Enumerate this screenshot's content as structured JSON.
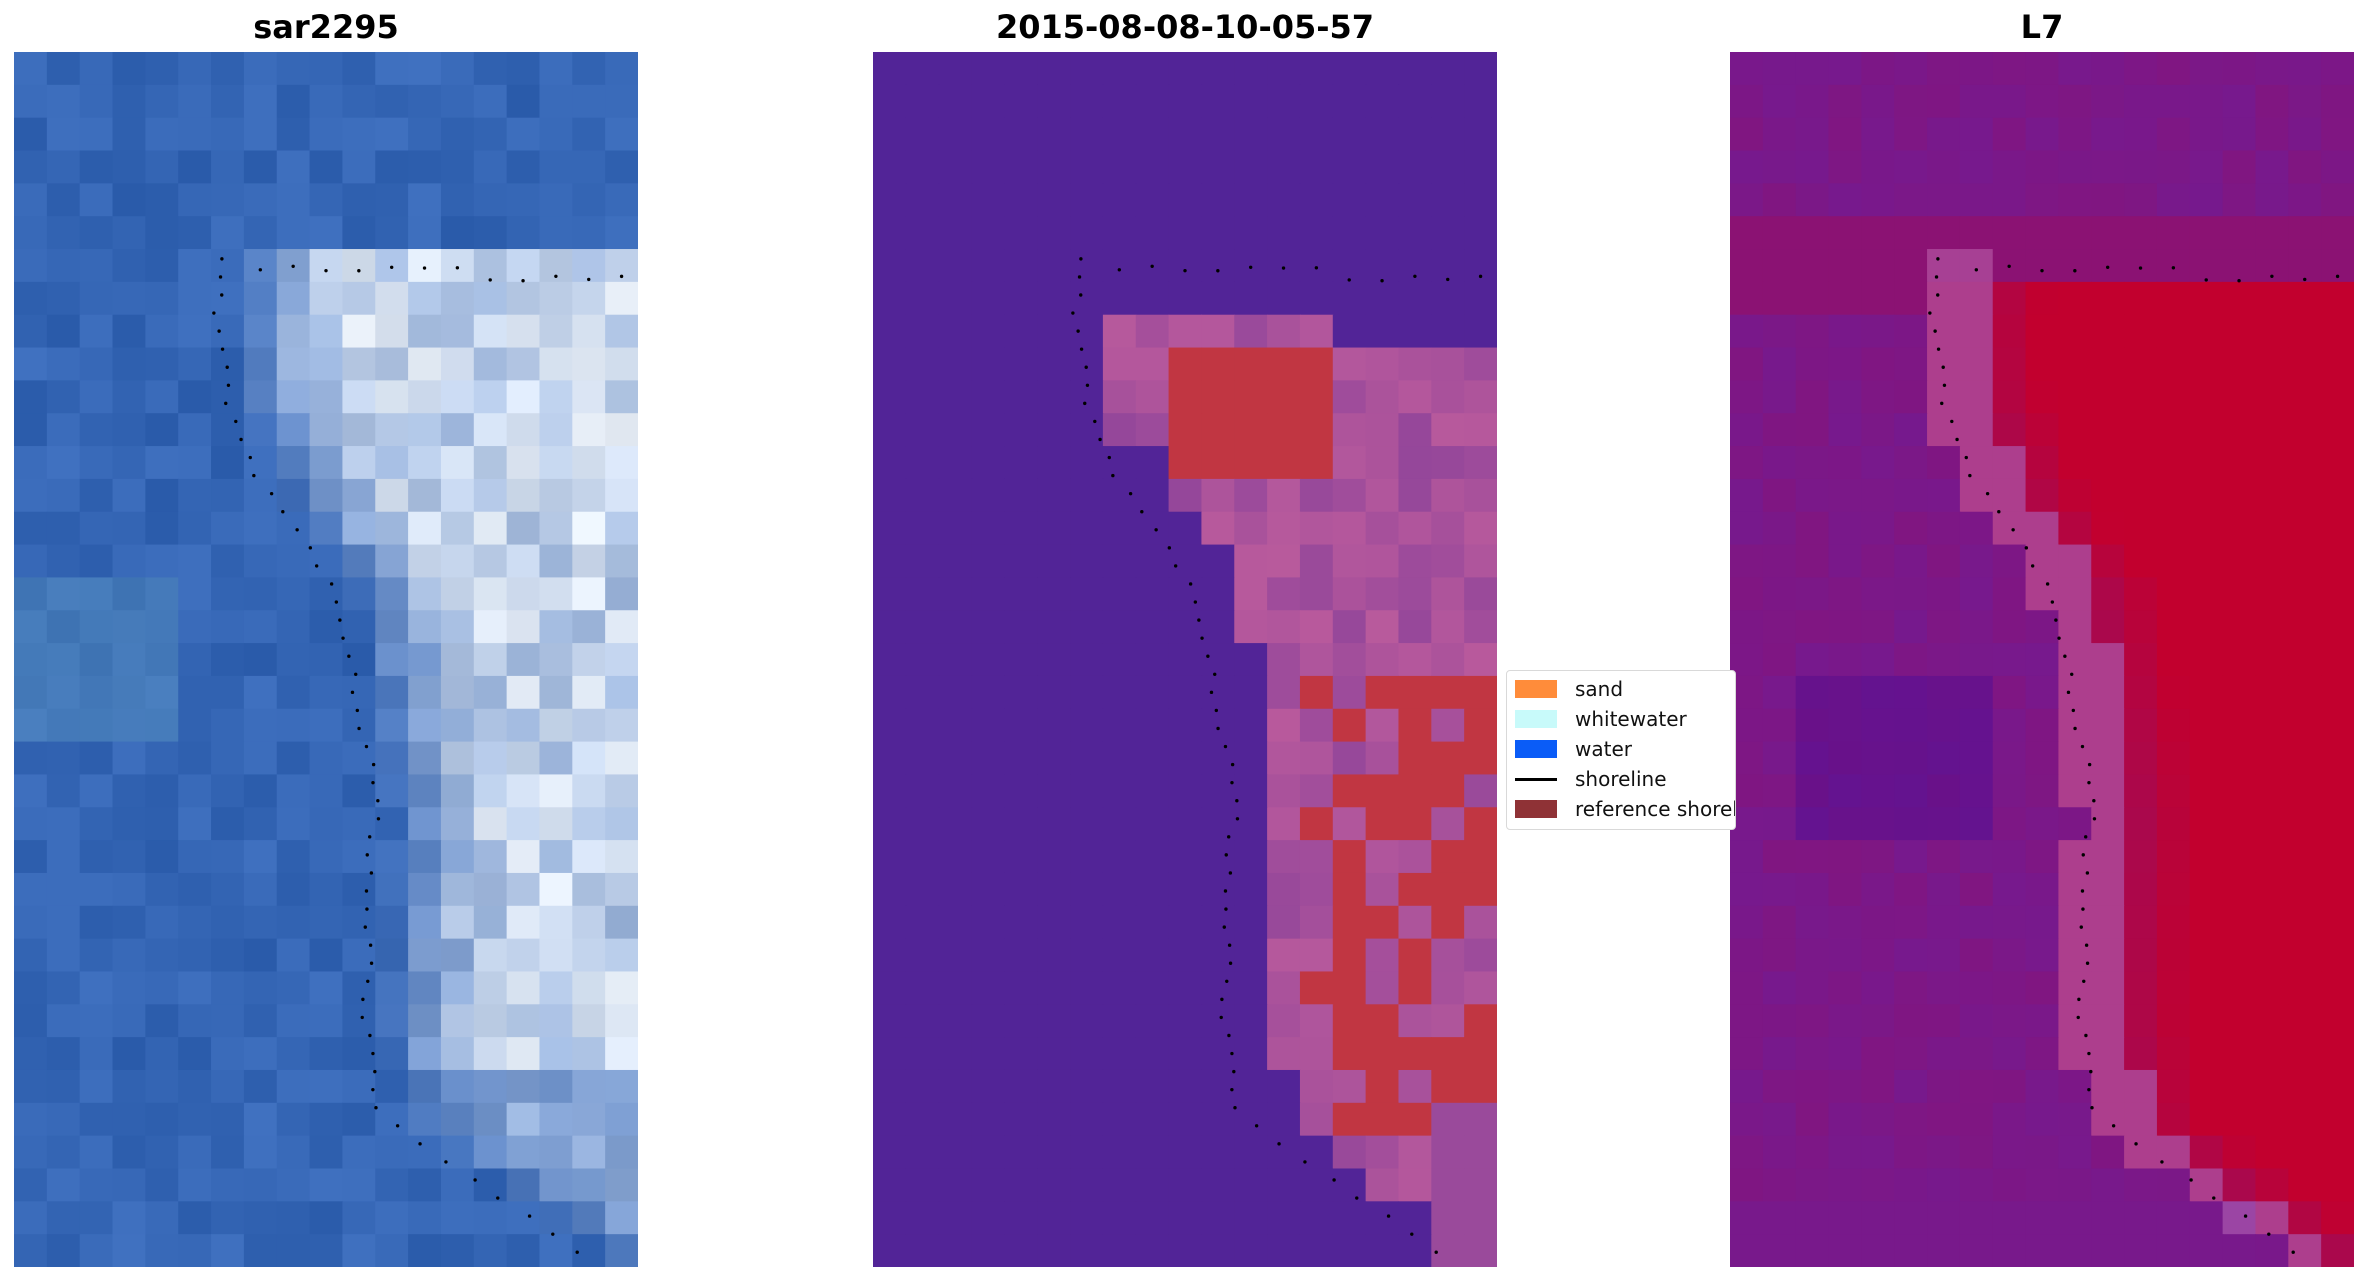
{
  "panels": [
    {
      "title": "sar2295"
    },
    {
      "title": "2015-08-08-10-05-57"
    },
    {
      "title": "L7"
    }
  ],
  "legend": {
    "items": [
      {
        "label": "sand",
        "color": "#ff8c3a"
      },
      {
        "label": "whitewater",
        "color": "#c8fafa"
      },
      {
        "label": "water",
        "color": "#0a5cf7"
      },
      {
        "label": "shoreline",
        "color": "#000000"
      },
      {
        "label": "reference shoreline",
        "color": "#8f3236"
      }
    ]
  },
  "colors": {
    "rgb_water": "#3566b5",
    "class_background": "#522497",
    "class_sand_overlay": "#b95a9c",
    "class_reference": "#c13642",
    "mndwi_low": "#6e1c98",
    "mndwi_high": "#c2002e"
  }
}
